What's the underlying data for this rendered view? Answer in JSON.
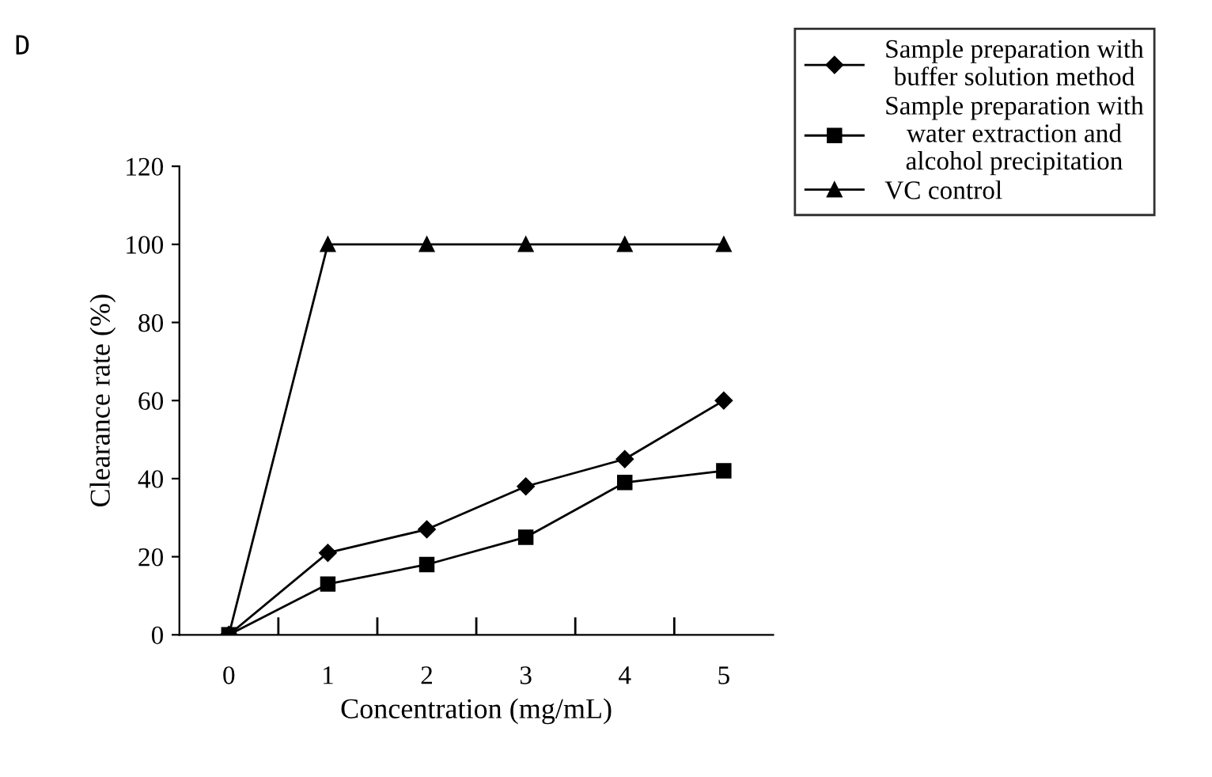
{
  "chart_data": {
    "type": "line",
    "xlabel": "Concentration (mg/mL)",
    "ylabel": "Clearance rate (%)",
    "annotations": [
      "D"
    ],
    "categories": [
      "0",
      "1",
      "2",
      "3",
      "4",
      "5"
    ],
    "series": [
      {
        "name": "Sample preparation with\nbuffer solution method",
        "color": "#000000",
        "marker": "diamond",
        "values": [
          0,
          21,
          27,
          38,
          45,
          60
        ]
      },
      {
        "name": "Sample preparation with\nwater extraction and\nalcohol precipitation",
        "color": "#000000",
        "marker": "square",
        "values": [
          0,
          13,
          18,
          25,
          39,
          42
        ]
      },
      {
        "name": "VC control",
        "color": "#000000",
        "marker": "triangle",
        "values": [
          0,
          100,
          100,
          100,
          100,
          100
        ]
      }
    ],
    "ylim": [
      0,
      120
    ],
    "yticks": [
      0,
      20,
      40,
      60,
      80,
      100,
      120
    ],
    "grid": false,
    "legend": "top right",
    "line_style": "solid"
  }
}
